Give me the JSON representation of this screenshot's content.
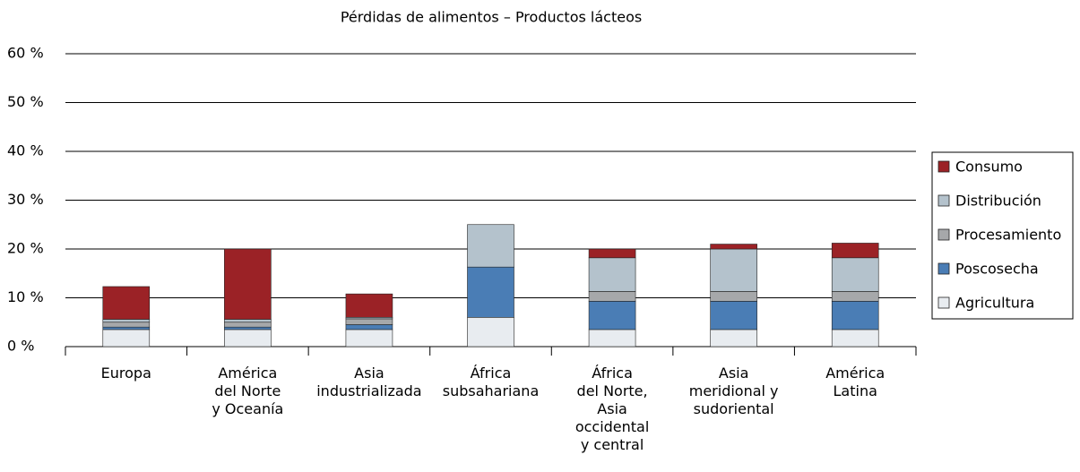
{
  "chart_data": {
    "type": "bar",
    "stacked": true,
    "title": "Pérdidas de alimentos – Productos lácteos",
    "categories": [
      "Europa",
      "América\ndel Norte\ny Oceanía",
      "Asia\nindustrializada",
      "África\nsubsahariana",
      "África\ndel Norte,\nAsia\noccidental\ny central",
      "Asia\nmeridional y\nsudoriental",
      "América\nLatina"
    ],
    "series": [
      {
        "name": "Agricultura",
        "color": "#e8ecf0",
        "values": [
          3.5,
          3.5,
          3.5,
          6.0,
          3.5,
          3.5,
          3.5
        ]
      },
      {
        "name": "Poscosecha",
        "color": "#4a7db5",
        "values": [
          0.5,
          0.5,
          1.0,
          10.3,
          5.8,
          5.8,
          5.8
        ]
      },
      {
        "name": "Procesamiento",
        "color": "#a6a8aa",
        "values": [
          1.0,
          1.0,
          1.2,
          0,
          2.0,
          2.0,
          2.0
        ]
      },
      {
        "name": "Distribución",
        "color": "#b4c2cc",
        "values": [
          0.6,
          0.6,
          0.3,
          8.7,
          6.9,
          8.7,
          6.9
        ]
      },
      {
        "name": "Consumo",
        "color": "#9b2226",
        "values": [
          6.7,
          14.4,
          4.8,
          0,
          1.8,
          1.0,
          3.0
        ]
      }
    ],
    "ylim": [
      0,
      60
    ],
    "yticks": [
      {
        "value": 0,
        "label": "0 %"
      },
      {
        "value": 10,
        "label": "10 %"
      },
      {
        "value": 20,
        "label": "20 %"
      },
      {
        "value": 30,
        "label": "30 %"
      },
      {
        "value": 40,
        "label": "40 %"
      },
      {
        "value": 50,
        "label": "50 %"
      },
      {
        "value": 60,
        "label": "60 %"
      }
    ],
    "grid": true,
    "legend": "right"
  }
}
